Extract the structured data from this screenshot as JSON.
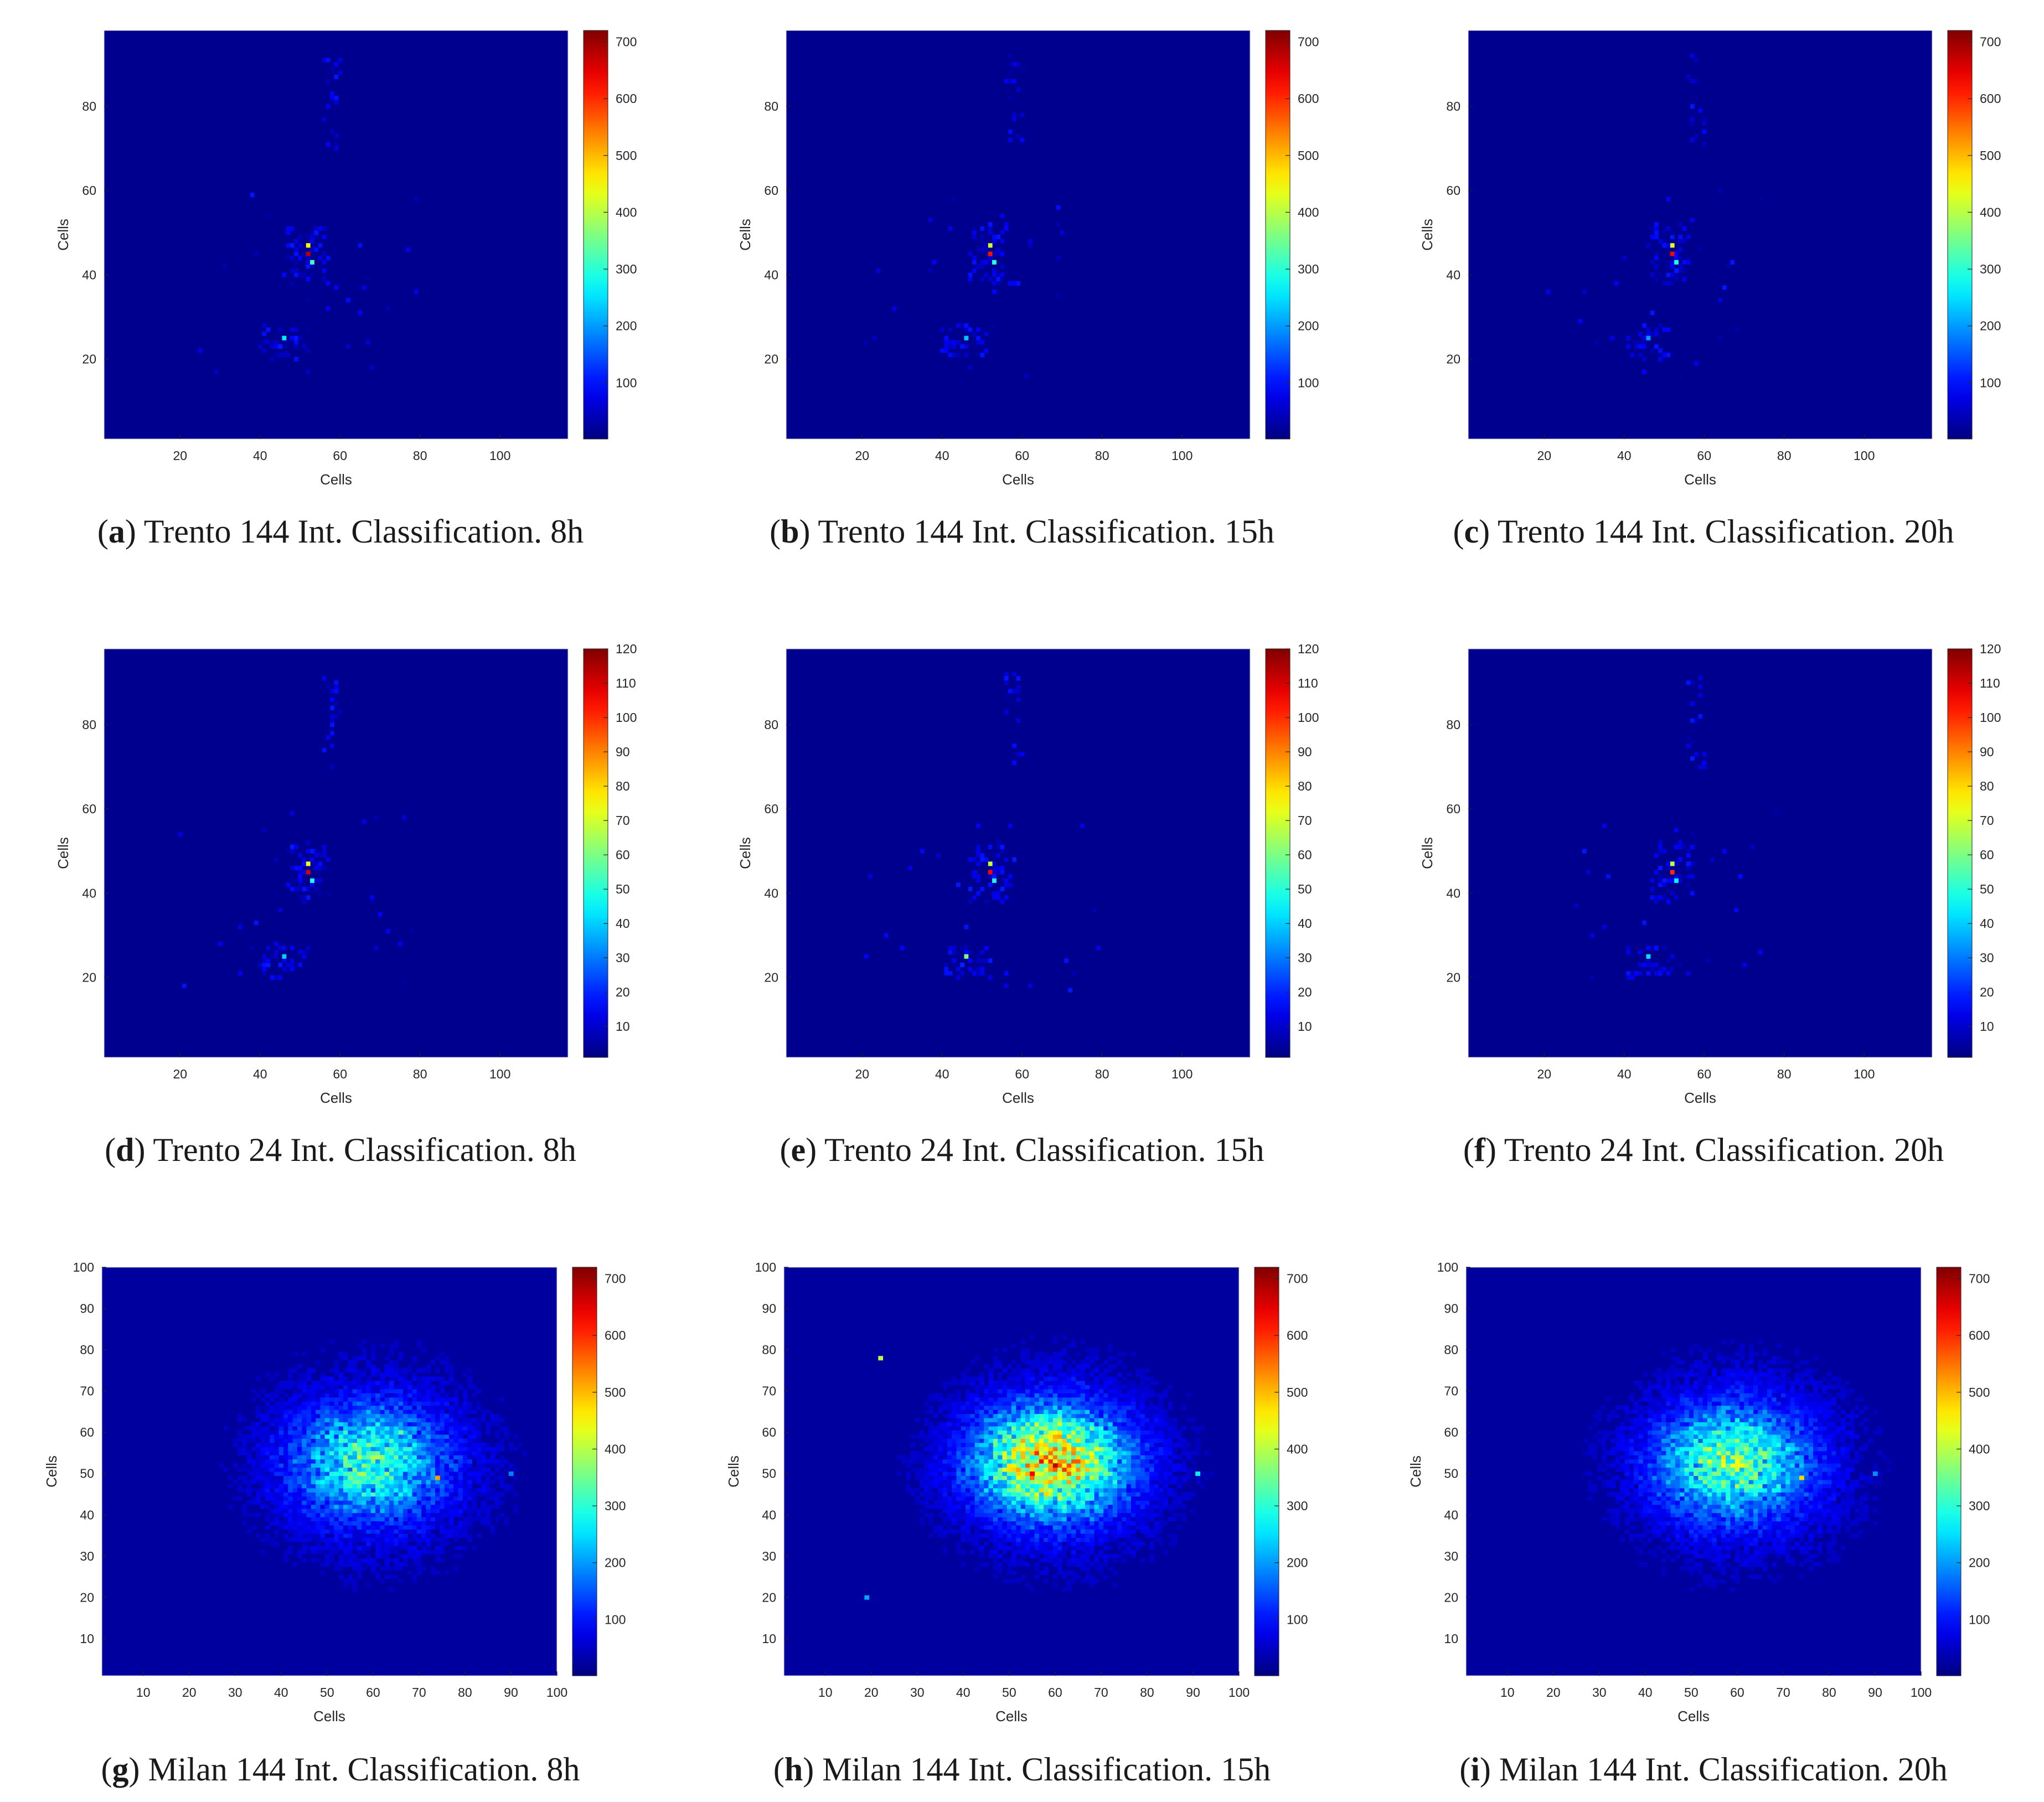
{
  "colormap": "jet",
  "panels": [
    {
      "id": "a",
      "letter": "a",
      "caption": "Trento 144 Int. Classification. 8h",
      "city": "trento"
    },
    {
      "id": "b",
      "letter": "b",
      "caption": "Trento 144 Int. Classification. 15h",
      "city": "trento"
    },
    {
      "id": "c",
      "letter": "c",
      "caption": "Trento 144 Int. Classification. 20h",
      "city": "trento"
    },
    {
      "id": "d",
      "letter": "d",
      "caption": "Trento 24 Int. Classification. 8h",
      "city": "trento"
    },
    {
      "id": "e",
      "letter": "e",
      "caption": "Trento 24 Int. Classification. 15h",
      "city": "trento"
    },
    {
      "id": "f",
      "letter": "f",
      "caption": "Trento 24 Int. Classification. 20h",
      "city": "trento"
    },
    {
      "id": "g",
      "letter": "g",
      "caption": "Milan 144 Int. Classification. 8h",
      "city": "milan"
    },
    {
      "id": "h",
      "letter": "h",
      "caption": "Milan 144 Int. Classification. 15h",
      "city": "milan"
    },
    {
      "id": "i",
      "letter": "i",
      "caption": "Milan 144 Int. Classification. 20h",
      "city": "milan"
    }
  ],
  "chart_data": [
    {
      "panel": "a",
      "type": "heatmap",
      "xlabel": "Cells",
      "ylabel": "Cells",
      "xlim": [
        1,
        117
      ],
      "ylim": [
        1,
        98
      ],
      "xticks": [
        20,
        40,
        60,
        80,
        100
      ],
      "yticks": [
        20,
        40,
        60,
        80
      ],
      "colorbar_range": [
        1,
        720
      ],
      "colorbar_ticks": [
        100,
        200,
        300,
        400,
        500,
        600,
        700
      ],
      "hotspots": [
        {
          "x": 52,
          "y": 45,
          "value": 680
        },
        {
          "x": 52,
          "y": 47,
          "value": 450
        },
        {
          "x": 53,
          "y": 43,
          "value": 320
        },
        {
          "x": 46,
          "y": 25,
          "value": 260
        },
        {
          "x": 45,
          "y": 23,
          "value": 110
        }
      ]
    },
    {
      "panel": "b",
      "type": "heatmap",
      "xlabel": "Cells",
      "ylabel": "Cells",
      "xlim": [
        1,
        117
      ],
      "ylim": [
        1,
        98
      ],
      "xticks": [
        20,
        40,
        60,
        80,
        100
      ],
      "yticks": [
        20,
        40,
        60,
        80
      ],
      "colorbar_range": [
        1,
        720
      ],
      "colorbar_ticks": [
        100,
        200,
        300,
        400,
        500,
        600,
        700
      ],
      "hotspots": [
        {
          "x": 52,
          "y": 45,
          "value": 620
        },
        {
          "x": 52,
          "y": 47,
          "value": 420
        },
        {
          "x": 53,
          "y": 43,
          "value": 300
        },
        {
          "x": 46,
          "y": 25,
          "value": 230
        },
        {
          "x": 45,
          "y": 23,
          "value": 100
        }
      ]
    },
    {
      "panel": "c",
      "type": "heatmap",
      "xlabel": "Cells",
      "ylabel": "Cells",
      "xlim": [
        1,
        117
      ],
      "ylim": [
        1,
        98
      ],
      "xticks": [
        20,
        40,
        60,
        80,
        100
      ],
      "yticks": [
        20,
        40,
        60,
        80
      ],
      "colorbar_range": [
        1,
        720
      ],
      "colorbar_ticks": [
        100,
        200,
        300,
        400,
        500,
        600,
        700
      ],
      "hotspots": [
        {
          "x": 52,
          "y": 45,
          "value": 630
        },
        {
          "x": 52,
          "y": 47,
          "value": 430
        },
        {
          "x": 53,
          "y": 43,
          "value": 300
        },
        {
          "x": 46,
          "y": 25,
          "value": 200
        },
        {
          "x": 45,
          "y": 23,
          "value": 90
        }
      ]
    },
    {
      "panel": "d",
      "type": "heatmap",
      "xlabel": "Cells",
      "ylabel": "Cells",
      "xlim": [
        1,
        117
      ],
      "ylim": [
        1,
        98
      ],
      "xticks": [
        20,
        40,
        60,
        80,
        100
      ],
      "yticks": [
        20,
        40,
        60,
        80
      ],
      "colorbar_range": [
        1,
        120
      ],
      "colorbar_ticks": [
        10,
        20,
        30,
        40,
        50,
        60,
        70,
        80,
        90,
        100,
        110,
        120
      ],
      "hotspots": [
        {
          "x": 52,
          "y": 45,
          "value": 110
        },
        {
          "x": 52,
          "y": 47,
          "value": 75
        },
        {
          "x": 53,
          "y": 43,
          "value": 50
        },
        {
          "x": 46,
          "y": 25,
          "value": 40
        },
        {
          "x": 45,
          "y": 23,
          "value": 18
        }
      ]
    },
    {
      "panel": "e",
      "type": "heatmap",
      "xlabel": "Cells",
      "ylabel": "Cells",
      "xlim": [
        1,
        117
      ],
      "ylim": [
        1,
        98
      ],
      "xticks": [
        20,
        40,
        60,
        80,
        100
      ],
      "yticks": [
        20,
        40,
        60,
        80
      ],
      "colorbar_range": [
        1,
        120
      ],
      "colorbar_ticks": [
        10,
        20,
        30,
        40,
        50,
        60,
        70,
        80,
        90,
        100,
        110,
        120
      ],
      "hotspots": [
        {
          "x": 52,
          "y": 45,
          "value": 105
        },
        {
          "x": 52,
          "y": 47,
          "value": 70
        },
        {
          "x": 53,
          "y": 43,
          "value": 48
        },
        {
          "x": 46,
          "y": 25,
          "value": 60
        },
        {
          "x": 45,
          "y": 23,
          "value": 20
        }
      ]
    },
    {
      "panel": "f",
      "type": "heatmap",
      "xlabel": "Cells",
      "ylabel": "Cells",
      "xlim": [
        1,
        117
      ],
      "ylim": [
        1,
        98
      ],
      "xticks": [
        20,
        40,
        60,
        80,
        100
      ],
      "yticks": [
        20,
        40,
        60,
        80
      ],
      "colorbar_range": [
        1,
        120
      ],
      "colorbar_ticks": [
        10,
        20,
        30,
        40,
        50,
        60,
        70,
        80,
        90,
        100,
        110,
        120
      ],
      "hotspots": [
        {
          "x": 52,
          "y": 45,
          "value": 100
        },
        {
          "x": 52,
          "y": 47,
          "value": 68
        },
        {
          "x": 53,
          "y": 43,
          "value": 45
        },
        {
          "x": 46,
          "y": 25,
          "value": 42
        },
        {
          "x": 45,
          "y": 23,
          "value": 15
        }
      ]
    },
    {
      "panel": "g",
      "type": "heatmap",
      "xlabel": "Cells",
      "ylabel": "Cells",
      "xlim": [
        1,
        100
      ],
      "ylim": [
        1,
        100
      ],
      "xticks": [
        10,
        20,
        30,
        40,
        50,
        60,
        70,
        80,
        90,
        100
      ],
      "yticks": [
        10,
        20,
        30,
        40,
        50,
        60,
        70,
        80,
        90,
        100
      ],
      "colorbar_range": [
        1,
        720
      ],
      "colorbar_ticks": [
        100,
        200,
        300,
        400,
        500,
        600,
        700
      ],
      "hotspots": [
        {
          "x": 62,
          "y": 54,
          "value": 380
        },
        {
          "x": 55,
          "y": 50,
          "value": 330
        },
        {
          "x": 66,
          "y": 60,
          "value": 340
        },
        {
          "x": 57,
          "y": 58,
          "value": 300
        },
        {
          "x": 74,
          "y": 49,
          "value": 520
        },
        {
          "x": 90,
          "y": 50,
          "value": 180
        }
      ]
    },
    {
      "panel": "h",
      "type": "heatmap",
      "xlabel": "Cells",
      "ylabel": "Cells",
      "xlim": [
        1,
        100
      ],
      "ylim": [
        1,
        100
      ],
      "xticks": [
        10,
        20,
        30,
        40,
        50,
        60,
        70,
        80,
        90,
        100
      ],
      "yticks": [
        10,
        20,
        30,
        40,
        50,
        60,
        70,
        80,
        90,
        100
      ],
      "colorbar_range": [
        1,
        720
      ],
      "colorbar_ticks": [
        100,
        200,
        300,
        400,
        500,
        600,
        700
      ],
      "hotspots": [
        {
          "x": 60,
          "y": 52,
          "value": 680
        },
        {
          "x": 55,
          "y": 50,
          "value": 640
        },
        {
          "x": 64,
          "y": 56,
          "value": 520
        },
        {
          "x": 58,
          "y": 45,
          "value": 480
        },
        {
          "x": 22,
          "y": 78,
          "value": 400
        },
        {
          "x": 19,
          "y": 20,
          "value": 210
        },
        {
          "x": 91,
          "y": 50,
          "value": 260
        }
      ]
    },
    {
      "panel": "i",
      "type": "heatmap",
      "xlabel": "Cells",
      "ylabel": "Cells",
      "xlim": [
        1,
        100
      ],
      "ylim": [
        1,
        100
      ],
      "xticks": [
        10,
        20,
        30,
        40,
        50,
        60,
        70,
        80,
        90,
        100
      ],
      "yticks": [
        10,
        20,
        30,
        40,
        50,
        60,
        70,
        80,
        90,
        100
      ],
      "colorbar_range": [
        1,
        720
      ],
      "colorbar_ticks": [
        100,
        200,
        300,
        400,
        500,
        600,
        700
      ],
      "hotspots": [
        {
          "x": 60,
          "y": 53,
          "value": 450
        },
        {
          "x": 55,
          "y": 50,
          "value": 360
        },
        {
          "x": 64,
          "y": 58,
          "value": 330
        },
        {
          "x": 74,
          "y": 49,
          "value": 480
        },
        {
          "x": 90,
          "y": 50,
          "value": 190
        }
      ]
    }
  ]
}
